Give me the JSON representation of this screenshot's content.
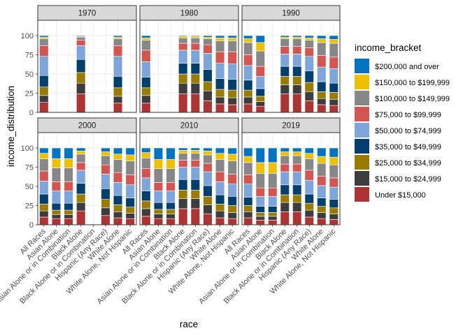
{
  "chart_data": {
    "type": "bar",
    "subtype": "stacked-100-facet",
    "xlabel": "race",
    "ylabel": "income_distribution",
    "ylim": [
      0,
      120
    ],
    "yticks": [
      0,
      25,
      50,
      75,
      100
    ],
    "grid": true,
    "legend_position": "right",
    "legend_title": "income_bracket",
    "categories": [
      "All Races",
      "Asian Alone",
      "Asian Alone or in Combination",
      "Black Alone",
      "Black Alone or in Combination",
      "Hispanic (Any Race)",
      "White Alone",
      "White Alone, Not Hispanic"
    ],
    "brackets": [
      "Under $15,000",
      "$15,000 to $24,999",
      "$25,000 to $34,999",
      "$35,000 to $49,999",
      "$50,000 to $74,999",
      "$75,000 to $99,999",
      "$100,000 to $149,999",
      "$150,000 to $199,999",
      "$200,000 and over"
    ],
    "legend_order": [
      "$200,000 and over",
      "$150,000 to $199,999",
      "$100,000 to $149,999",
      "$75,000 to $99,999",
      "$50,000 to $74,999",
      "$35,000 to $49,999",
      "$25,000 to $34,999",
      "$15,000 to $24,999",
      "Under $15,000"
    ],
    "colors": {
      "Under $15,000": "#b03333",
      "$15,000 to $24,999": "#3d3d3d",
      "$25,000 to $34,999": "#9a7b00",
      "$35,000 to $49,999": "#003f6e",
      "$50,000 to $74,999": "#7ea4dc",
      "$75,000 to $99,999": "#d4544f",
      "$100,000 to $149,999": "#878787",
      "$150,000 to $199,999": "#efc000",
      "$200,000 and over": "#0073c2"
    },
    "facets": [
      {
        "title": "1970",
        "bars": [
          [
            13,
            9,
            11,
            15,
            25,
            14,
            9,
            2,
            2
          ],
          null,
          null,
          [
            24,
            14,
            14,
            17,
            18,
            7,
            4,
            1,
            1
          ],
          null,
          null,
          [
            12,
            9,
            11,
            15,
            26,
            14,
            9,
            2,
            2
          ],
          null
        ]
      },
      {
        "title": "1980",
        "bars": [
          [
            12,
            10,
            10,
            14,
            20,
            15,
            13,
            3,
            3
          ],
          null,
          null,
          [
            24,
            14,
            12,
            14,
            17,
            9,
            7,
            2,
            1
          ],
          [
            24,
            14,
            12,
            14,
            17,
            9,
            7,
            2,
            1
          ],
          [
            15,
            13,
            12,
            16,
            21,
            11,
            8,
            2,
            2
          ],
          [
            11,
            9,
            10,
            14,
            20,
            15,
            14,
            4,
            3
          ],
          [
            10,
            9,
            10,
            14,
            20,
            16,
            14,
            4,
            3
          ]
        ]
      },
      {
        "title": "1990",
        "bars": [
          [
            11,
            9,
            9,
            13,
            19,
            14,
            16,
            5,
            4
          ],
          [
            8,
            6,
            7,
            10,
            16,
            13,
            20,
            11,
            9
          ],
          null,
          [
            24,
            12,
            11,
            13,
            16,
            10,
            10,
            2,
            2
          ],
          [
            24,
            12,
            11,
            13,
            16,
            10,
            10,
            2,
            2
          ],
          [
            15,
            12,
            12,
            15,
            19,
            11,
            10,
            3,
            3
          ],
          [
            10,
            8,
            9,
            13,
            19,
            15,
            17,
            5,
            4
          ],
          [
            9,
            8,
            9,
            12,
            19,
            15,
            18,
            5,
            5
          ]
        ]
      },
      {
        "title": "2000",
        "bars": [
          [
            10,
            8,
            9,
            13,
            17,
            13,
            16,
            7,
            7
          ],
          [
            8,
            5,
            6,
            9,
            16,
            12,
            18,
            12,
            14
          ],
          [
            8,
            5,
            6,
            9,
            16,
            12,
            18,
            12,
            14
          ],
          [
            18,
            11,
            11,
            14,
            17,
            10,
            11,
            4,
            4
          ],
          null,
          [
            12,
            10,
            11,
            14,
            19,
            12,
            12,
            5,
            5
          ],
          [
            9,
            8,
            9,
            12,
            17,
            13,
            17,
            7,
            8
          ],
          [
            8,
            7,
            8,
            12,
            17,
            13,
            18,
            8,
            9
          ]
        ]
      },
      {
        "title": "2010",
        "bars": [
          [
            11,
            10,
            10,
            13,
            17,
            12,
            14,
            7,
            6
          ],
          [
            8,
            6,
            6,
            9,
            15,
            11,
            18,
            12,
            15
          ],
          [
            8,
            6,
            6,
            9,
            15,
            11,
            18,
            12,
            15
          ],
          [
            21,
            13,
            11,
            14,
            16,
            9,
            9,
            4,
            3
          ],
          [
            21,
            13,
            11,
            14,
            16,
            9,
            9,
            4,
            3
          ],
          [
            14,
            12,
            11,
            14,
            18,
            11,
            11,
            5,
            4
          ],
          [
            9,
            9,
            9,
            12,
            17,
            13,
            16,
            8,
            7
          ],
          [
            8,
            8,
            9,
            12,
            16,
            13,
            17,
            9,
            8
          ]
        ]
      },
      {
        "title": "2019",
        "bars": [
          [
            9,
            8,
            8,
            11,
            17,
            12,
            16,
            8,
            11
          ],
          [
            6,
            5,
            5,
            8,
            13,
            11,
            19,
            14,
            19
          ],
          [
            6,
            5,
            5,
            8,
            13,
            11,
            19,
            14,
            19
          ],
          [
            17,
            12,
            10,
            13,
            17,
            10,
            11,
            5,
            5
          ],
          [
            17,
            12,
            10,
            13,
            17,
            10,
            11,
            5,
            5
          ],
          [
            10,
            9,
            9,
            12,
            18,
            13,
            15,
            7,
            7
          ],
          [
            8,
            8,
            8,
            11,
            16,
            12,
            17,
            9,
            11
          ],
          [
            7,
            7,
            8,
            11,
            16,
            12,
            17,
            10,
            12
          ]
        ]
      }
    ]
  }
}
